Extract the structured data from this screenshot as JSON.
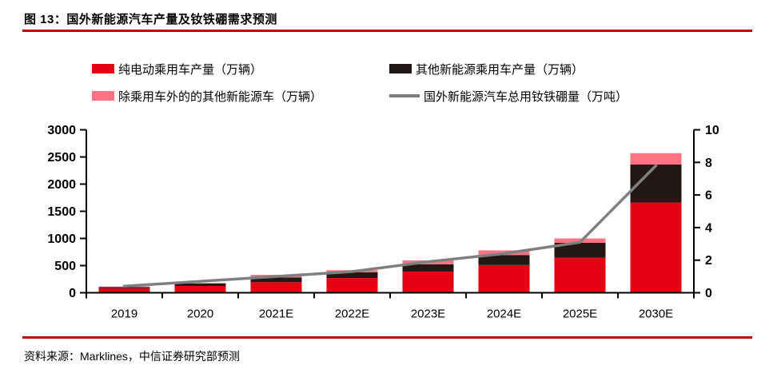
{
  "figure": {
    "title": "图 13：国外新能源汽车产量及钕铁硼需求预测",
    "source": "资料来源：Marklines，中信证券研究部预测"
  },
  "legend": {
    "items": [
      {
        "label": "纯电动乘用车产量（万辆）",
        "color": "#e60012",
        "kind": "box"
      },
      {
        "label": "其他新能源乘用车产量（万辆）",
        "color": "#231815",
        "kind": "box"
      },
      {
        "label": "除乘用车外的的其他新能源车（万辆）",
        "color": "#ff7385",
        "kind": "box"
      },
      {
        "label": "国外新能源汽车总用钕铁硼量（万吨）",
        "color": "#7f7f7f",
        "kind": "line"
      }
    ]
  },
  "chart_data": {
    "type": "bar",
    "subtype": "stacked-bars-with-line",
    "categories": [
      "2019",
      "2020",
      "2021E",
      "2022E",
      "2023E",
      "2024E",
      "2025E",
      "2030E"
    ],
    "series": [
      {
        "id": "bev",
        "name": "纯电动乘用车产量（万辆）",
        "color": "#e60012",
        "values": [
          85,
          125,
          195,
          270,
          390,
          510,
          645,
          1660
        ]
      },
      {
        "id": "other-nev-pc",
        "name": "其他新能源乘用车产量（万辆）",
        "color": "#231815",
        "values": [
          20,
          45,
          85,
          105,
          135,
          185,
          275,
          700
        ]
      },
      {
        "id": "other-nev",
        "name": "除乘用车外的的其他新能源车（万辆）",
        "color": "#ff7385",
        "values": [
          10,
          10,
          50,
          40,
          70,
          85,
          80,
          210
        ]
      }
    ],
    "line_series": {
      "id": "ndfeb",
      "name": "国外新能源汽车总用钕铁硼量（万吨）",
      "color": "#7f7f7f",
      "axis": "right",
      "values": [
        0.4,
        0.7,
        1.0,
        1.3,
        1.9,
        2.4,
        3.1,
        7.8
      ]
    },
    "left_axis": {
      "min": 0,
      "max": 3000,
      "step": 500
    },
    "right_axis": {
      "min": 0,
      "max": 10,
      "step": 2
    },
    "grid": false,
    "legend_position": "top"
  },
  "colors": {
    "rule": "#c00000",
    "axis": "#000000",
    "background": "#ffffff"
  }
}
